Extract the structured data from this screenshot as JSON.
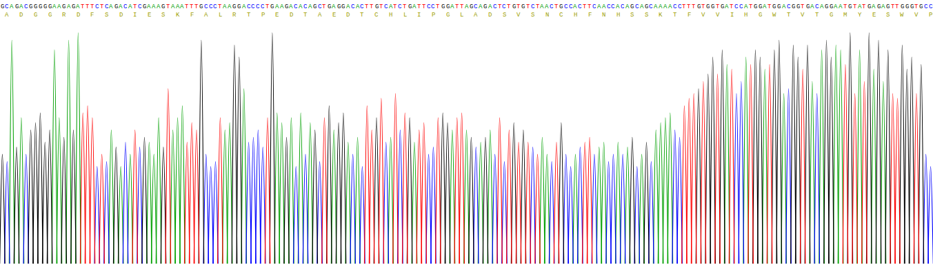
{
  "chart_data": {
    "type": "line",
    "sequence": "GCAGACGGGGGAAGAGATTTCTCAGACATCGAAAGTAAATTTGCCCTAAGGACCCCTGAAGACACAGCTGAGGACACTTGTCATCTGATTCCTGGATTAGCAGACTCTGTGTCTAACTGCCACTTCAACCACAGCAGCAAAACCTTTGTGGTGATCCATGGATGGACGGTGACAGGAATGTATGAGAGTTGGGTGCC",
    "translation": [
      "A",
      "D",
      "G",
      "G",
      "R",
      "D",
      "F",
      "S",
      "D",
      "I",
      "E",
      "S",
      "K",
      "F",
      "A",
      "L",
      "R",
      "T",
      "P",
      "E",
      "D",
      "T",
      "A",
      "E",
      "D",
      "T",
      "C",
      "H",
      "L",
      "I",
      "P",
      "G",
      "L",
      "A",
      "D",
      "S",
      "V",
      "S",
      "N",
      "C",
      "H",
      "F",
      "N",
      "H",
      "S",
      "S",
      "K",
      "T",
      "F",
      "V",
      "V",
      "I",
      "H",
      "G",
      "W",
      "T",
      "V",
      "T",
      "G",
      "M",
      "Y",
      "E",
      "S",
      "W",
      "V",
      "P"
    ],
    "values": [
      45,
      42,
      92,
      48,
      60,
      45,
      55,
      58,
      62,
      50,
      55,
      88,
      60,
      52,
      92,
      55,
      95,
      62,
      65,
      60,
      40,
      45,
      42,
      55,
      48,
      40,
      50,
      45,
      55,
      48,
      52,
      50,
      45,
      60,
      48,
      72,
      55,
      60,
      65,
      50,
      58,
      55,
      92,
      45,
      40,
      42,
      60,
      55,
      58,
      90,
      85,
      72,
      50,
      52,
      55,
      48,
      60,
      95,
      62,
      58,
      52,
      60,
      40,
      62,
      45,
      58,
      55,
      42,
      60,
      65,
      55,
      58,
      62,
      50,
      45,
      52,
      40,
      65,
      55,
      60,
      68,
      50,
      52,
      70,
      55,
      62,
      60,
      50,
      55,
      58,
      45,
      48,
      60,
      62,
      58,
      55,
      60,
      62,
      55,
      52,
      48,
      50,
      52,
      55,
      45,
      60,
      42,
      55,
      58,
      50,
      55,
      50,
      48,
      45,
      52,
      45,
      42,
      50,
      58,
      45,
      40,
      45,
      48,
      50,
      52,
      45,
      48,
      50,
      42,
      45,
      50,
      45,
      48,
      52,
      40,
      45,
      50,
      42,
      55,
      58,
      60,
      62,
      55,
      52,
      65,
      68,
      70,
      72,
      75,
      78,
      85,
      78,
      88,
      82,
      80,
      70,
      75,
      85,
      82,
      88,
      85,
      80,
      82,
      88,
      92,
      70,
      72,
      90,
      85,
      80,
      90,
      75,
      70,
      88,
      92,
      85,
      90,
      88,
      82,
      95,
      70,
      88,
      75,
      95,
      80,
      92,
      75,
      88,
      70,
      68,
      90,
      80,
      85,
      70,
      82,
      45,
      40
    ],
    "colors": {
      "A": "#00a000",
      "C": "#0000ff",
      "G": "#000000",
      "T": "#ff0000"
    },
    "xlim": [
      -0.5,
      196.5
    ],
    "ylim": [
      0,
      100
    ],
    "grid": false,
    "tick_labels": false
  }
}
